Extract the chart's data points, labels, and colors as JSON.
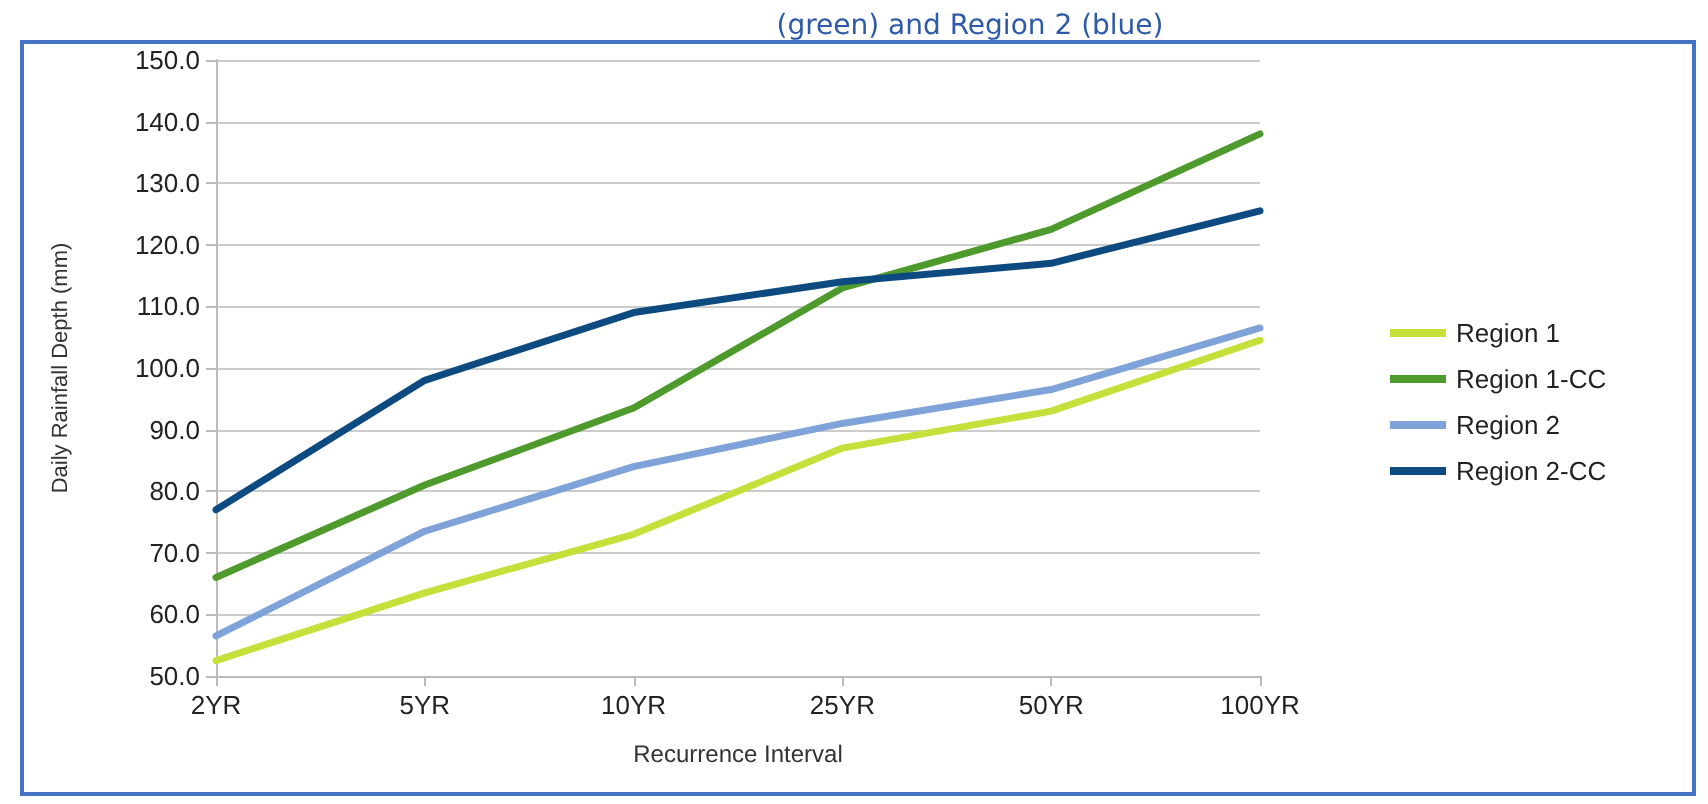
{
  "chart_data": {
    "type": "line",
    "title": "(green) and Region 2 (blue)",
    "xlabel": "Recurrence Interval",
    "ylabel": "Daily Rainfall Depth (mm)",
    "categories": [
      "2YR",
      "5YR",
      "10YR",
      "25YR",
      "50YR",
      "100YR"
    ],
    "series": [
      {
        "name": "Region 1",
        "color": "#c5e03a",
        "values": [
          52.5,
          63.5,
          73,
          87,
          93,
          104.5
        ]
      },
      {
        "name": "Region 1-CC",
        "color": "#4e9a2c",
        "values": [
          66,
          81,
          93.5,
          113,
          122.5,
          138
        ]
      },
      {
        "name": "Region 2",
        "color": "#7fa3d9",
        "values": [
          56.5,
          73.5,
          84,
          91,
          96.5,
          106.5
        ]
      },
      {
        "name": "Region 2-CC",
        "color": "#0d4a80",
        "values": [
          77,
          98,
          109,
          114,
          117,
          125.5
        ]
      }
    ],
    "ylim": [
      50,
      150
    ],
    "yticks": [
      {
        "value": 50,
        "label": "50.0"
      },
      {
        "value": 60,
        "label": "60.0"
      },
      {
        "value": 70,
        "label": "70.0"
      },
      {
        "value": 80,
        "label": "80.0"
      },
      {
        "value": 90,
        "label": "90.0"
      },
      {
        "value": 100,
        "label": "100.0"
      },
      {
        "value": 110,
        "label": "110.0"
      },
      {
        "value": 120,
        "label": "120.0"
      },
      {
        "value": 130,
        "label": "130.0"
      },
      {
        "value": 140,
        "label": "140.0"
      },
      {
        "value": 150,
        "label": "150.0"
      }
    ],
    "grid": "y",
    "legend": "right",
    "marker": "none",
    "line_style": "solid"
  }
}
